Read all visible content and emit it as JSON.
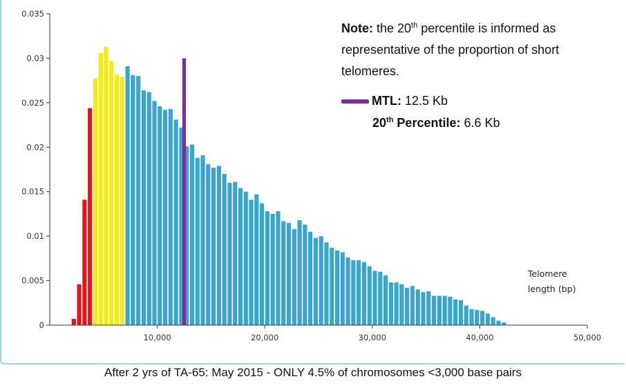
{
  "chart_data": {
    "type": "bar",
    "title": "",
    "xlabel": "Telomere length (bp)",
    "xlabel_lines": [
      "Telomere",
      "length (bp)"
    ],
    "ylabel": "",
    "xlim": [
      0,
      50000
    ],
    "ylim": [
      0,
      0.035
    ],
    "x_ticks": [
      10000,
      20000,
      30000,
      40000,
      50000
    ],
    "x_tick_labels": [
      "10,000",
      "20,000",
      "30,000",
      "40,000",
      "50,000"
    ],
    "y_ticks": [
      0,
      0.005,
      0.01,
      0.015,
      0.02,
      0.025,
      0.03,
      0.035
    ],
    "y_tick_labels": [
      "0",
      "0.005",
      "0.01",
      "0.015",
      "0.02",
      "0.025",
      "0.03",
      "0.035"
    ],
    "bin_width": 500,
    "colors": {
      "short": "#e3141d",
      "lowpct": "#f5ea15",
      "rest": "#3aa5cc",
      "mtl": "#7b2f95"
    },
    "bars": [
      {
        "x": 2250,
        "y": 0.0007,
        "c": "short"
      },
      {
        "x": 2750,
        "y": 0.0046,
        "c": "short"
      },
      {
        "x": 3250,
        "y": 0.0141,
        "c": "short"
      },
      {
        "x": 3750,
        "y": 0.0244,
        "c": "short"
      },
      {
        "x": 4250,
        "y": 0.0277,
        "c": "lowpct"
      },
      {
        "x": 4750,
        "y": 0.0306,
        "c": "lowpct"
      },
      {
        "x": 5250,
        "y": 0.0313,
        "c": "lowpct"
      },
      {
        "x": 5750,
        "y": 0.0297,
        "c": "lowpct"
      },
      {
        "x": 6250,
        "y": 0.0282,
        "c": "lowpct"
      },
      {
        "x": 6750,
        "y": 0.0279,
        "c": "lowpct"
      },
      {
        "x": 7250,
        "y": 0.0291,
        "c": "rest"
      },
      {
        "x": 7750,
        "y": 0.0281,
        "c": "rest"
      },
      {
        "x": 8250,
        "y": 0.028,
        "c": "rest"
      },
      {
        "x": 8750,
        "y": 0.0264,
        "c": "rest"
      },
      {
        "x": 9250,
        "y": 0.0262,
        "c": "rest"
      },
      {
        "x": 9750,
        "y": 0.0252,
        "c": "rest"
      },
      {
        "x": 10250,
        "y": 0.0246,
        "c": "rest"
      },
      {
        "x": 10750,
        "y": 0.0242,
        "c": "rest"
      },
      {
        "x": 11250,
        "y": 0.0243,
        "c": "rest"
      },
      {
        "x": 11750,
        "y": 0.0231,
        "c": "rest"
      },
      {
        "x": 12250,
        "y": 0.0222,
        "c": "rest"
      },
      {
        "x": 12750,
        "y": 0.0201,
        "c": "rest"
      },
      {
        "x": 13250,
        "y": 0.0203,
        "c": "rest"
      },
      {
        "x": 13750,
        "y": 0.0188,
        "c": "rest"
      },
      {
        "x": 14250,
        "y": 0.0191,
        "c": "rest"
      },
      {
        "x": 14750,
        "y": 0.0181,
        "c": "rest"
      },
      {
        "x": 15250,
        "y": 0.0177,
        "c": "rest"
      },
      {
        "x": 15750,
        "y": 0.0179,
        "c": "rest"
      },
      {
        "x": 16250,
        "y": 0.017,
        "c": "rest"
      },
      {
        "x": 16750,
        "y": 0.016,
        "c": "rest"
      },
      {
        "x": 17250,
        "y": 0.0161,
        "c": "rest"
      },
      {
        "x": 17750,
        "y": 0.0154,
        "c": "rest"
      },
      {
        "x": 18250,
        "y": 0.015,
        "c": "rest"
      },
      {
        "x": 18750,
        "y": 0.0141,
        "c": "rest"
      },
      {
        "x": 19250,
        "y": 0.0147,
        "c": "rest"
      },
      {
        "x": 19750,
        "y": 0.0137,
        "c": "rest"
      },
      {
        "x": 20250,
        "y": 0.0128,
        "c": "rest"
      },
      {
        "x": 20750,
        "y": 0.0125,
        "c": "rest"
      },
      {
        "x": 21250,
        "y": 0.0128,
        "c": "rest"
      },
      {
        "x": 21750,
        "y": 0.0117,
        "c": "rest"
      },
      {
        "x": 22250,
        "y": 0.0115,
        "c": "rest"
      },
      {
        "x": 22750,
        "y": 0.0108,
        "c": "rest"
      },
      {
        "x": 23250,
        "y": 0.0118,
        "c": "rest"
      },
      {
        "x": 23750,
        "y": 0.0113,
        "c": "rest"
      },
      {
        "x": 24250,
        "y": 0.0105,
        "c": "rest"
      },
      {
        "x": 24750,
        "y": 0.0098,
        "c": "rest"
      },
      {
        "x": 25250,
        "y": 0.01,
        "c": "rest"
      },
      {
        "x": 25750,
        "y": 0.0093,
        "c": "rest"
      },
      {
        "x": 26250,
        "y": 0.0087,
        "c": "rest"
      },
      {
        "x": 26750,
        "y": 0.0084,
        "c": "rest"
      },
      {
        "x": 27250,
        "y": 0.0082,
        "c": "rest"
      },
      {
        "x": 27750,
        "y": 0.0076,
        "c": "rest"
      },
      {
        "x": 28250,
        "y": 0.0073,
        "c": "rest"
      },
      {
        "x": 28750,
        "y": 0.0073,
        "c": "rest"
      },
      {
        "x": 29250,
        "y": 0.0071,
        "c": "rest"
      },
      {
        "x": 29750,
        "y": 0.0066,
        "c": "rest"
      },
      {
        "x": 30250,
        "y": 0.0061,
        "c": "rest"
      },
      {
        "x": 30750,
        "y": 0.006,
        "c": "rest"
      },
      {
        "x": 31250,
        "y": 0.0056,
        "c": "rest"
      },
      {
        "x": 31750,
        "y": 0.0048,
        "c": "rest"
      },
      {
        "x": 32250,
        "y": 0.0048,
        "c": "rest"
      },
      {
        "x": 32750,
        "y": 0.0046,
        "c": "rest"
      },
      {
        "x": 33250,
        "y": 0.0042,
        "c": "rest"
      },
      {
        "x": 33750,
        "y": 0.0044,
        "c": "rest"
      },
      {
        "x": 34250,
        "y": 0.004,
        "c": "rest"
      },
      {
        "x": 34750,
        "y": 0.0037,
        "c": "rest"
      },
      {
        "x": 35250,
        "y": 0.0038,
        "c": "rest"
      },
      {
        "x": 35750,
        "y": 0.0033,
        "c": "rest"
      },
      {
        "x": 36250,
        "y": 0.0033,
        "c": "rest"
      },
      {
        "x": 36750,
        "y": 0.0033,
        "c": "rest"
      },
      {
        "x": 37250,
        "y": 0.0032,
        "c": "rest"
      },
      {
        "x": 37750,
        "y": 0.0029,
        "c": "rest"
      },
      {
        "x": 38250,
        "y": 0.0028,
        "c": "rest"
      },
      {
        "x": 38750,
        "y": 0.0022,
        "c": "rest"
      },
      {
        "x": 39250,
        "y": 0.0018,
        "c": "rest"
      },
      {
        "x": 39750,
        "y": 0.0017,
        "c": "rest"
      },
      {
        "x": 40250,
        "y": 0.0016,
        "c": "rest"
      },
      {
        "x": 40750,
        "y": 0.0013,
        "c": "rest"
      },
      {
        "x": 41250,
        "y": 0.0009,
        "c": "rest"
      },
      {
        "x": 41750,
        "y": 0.0005,
        "c": "rest"
      },
      {
        "x": 42250,
        "y": 0.0003,
        "c": "rest"
      }
    ],
    "mtl_marker": {
      "x": 12500,
      "y": 0.03
    },
    "grid": false,
    "legend_position": "top-right"
  },
  "note": {
    "bold": "Note:",
    "text_before_sup": " the 20",
    "sup": "th",
    "text_after_sup": " percentile is informed as representative of the proportion of short telomeres."
  },
  "legend": {
    "mtl_label": "MTL:",
    "mtl_value": " 12.5 Kb",
    "pct_label_prefix": "20",
    "pct_sup": "th",
    "pct_label_suffix": " Percentile:",
    "pct_value": " 6.6 Kb"
  },
  "caption": "After 2 yrs of TA-65: May 2015 -  ONLY 4.5% of chromosomes <3,000 base pairs"
}
